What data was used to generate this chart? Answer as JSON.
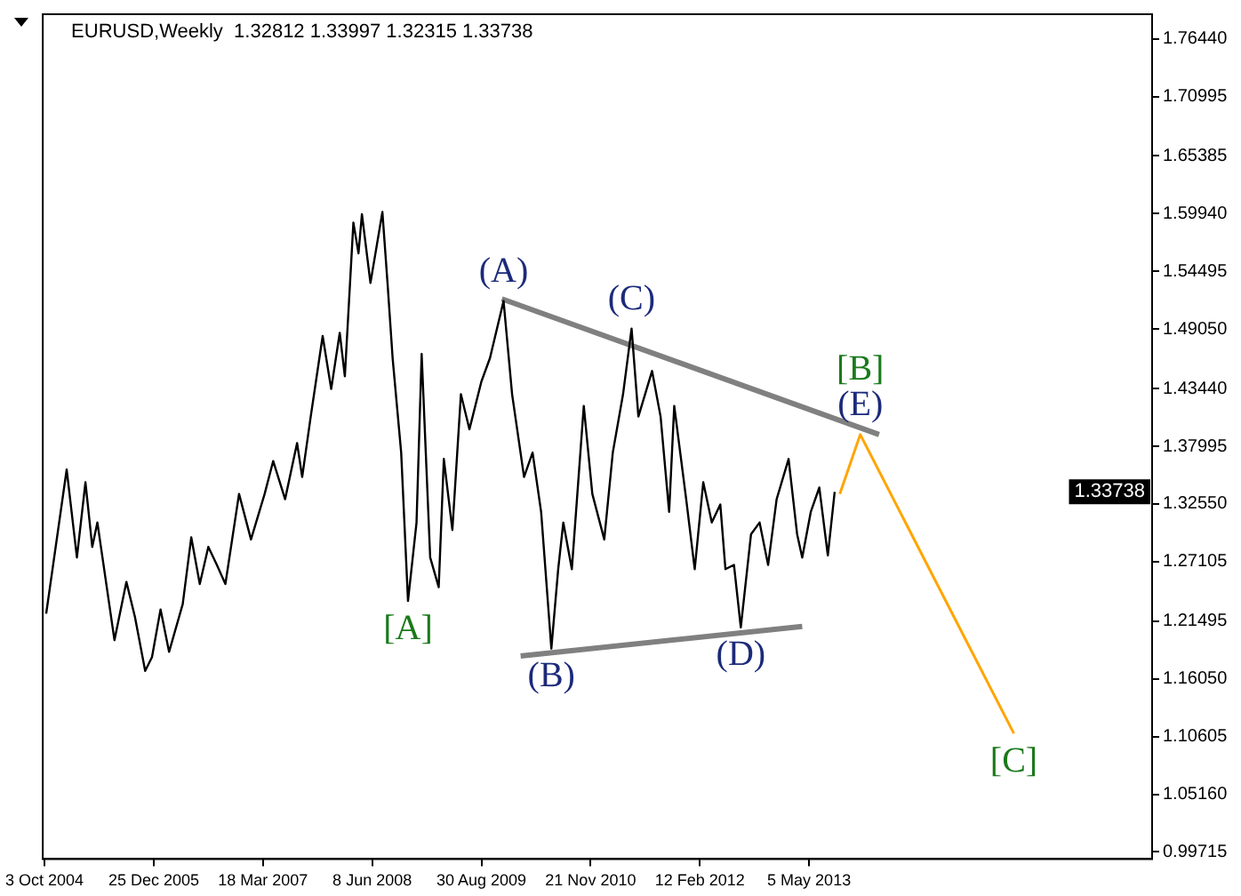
{
  "chart_data": {
    "type": "line",
    "title": "EURUSD,Weekly  1.32812 1.33997 1.32315 1.33738",
    "xlim": [
      "2004-09-26",
      "2017-03-12"
    ],
    "xticks": [
      {
        "value": "2004-10-03",
        "label": "3 Oct 2004"
      },
      {
        "value": "2005-12-25",
        "label": "25 Dec 2005"
      },
      {
        "value": "2007-03-18",
        "label": "18 Mar 2007"
      },
      {
        "value": "2008-06-08",
        "label": "8 Jun 2008"
      },
      {
        "value": "2009-08-30",
        "label": "30 Aug 2009"
      },
      {
        "value": "2010-11-21",
        "label": "21 Nov 2010"
      },
      {
        "value": "2012-02-12",
        "label": "12 Feb 2012"
      },
      {
        "value": "2013-05-05",
        "label": "5 May 2013"
      }
    ],
    "ylim": [
      0.9905,
      1.7876
    ],
    "yticks": [
      {
        "value": 0.99715,
        "label": "0.99715"
      },
      {
        "value": 1.0516,
        "label": "1.05160"
      },
      {
        "value": 1.10605,
        "label": "1.10605"
      },
      {
        "value": 1.1605,
        "label": "1.16050"
      },
      {
        "value": 1.21495,
        "label": "1.21495"
      },
      {
        "value": 1.27105,
        "label": "1.27105"
      },
      {
        "value": 1.3255,
        "label": "1.32550"
      },
      {
        "value": 1.37995,
        "label": "1.37995"
      },
      {
        "value": 1.4344,
        "label": "1.43440"
      },
      {
        "value": 1.4905,
        "label": "1.49050"
      },
      {
        "value": 1.54495,
        "label": "1.54495"
      },
      {
        "value": 1.5994,
        "label": "1.59940"
      },
      {
        "value": 1.65385,
        "label": "1.65385"
      },
      {
        "value": 1.70995,
        "label": "1.70995"
      },
      {
        "value": 1.7644,
        "label": "1.76440"
      }
    ],
    "grid": false,
    "legend": false,
    "marker": "none",
    "series": [
      {
        "color": "#000000",
        "x": [
          "2004-10-10",
          "2005-01-02",
          "2005-02-13",
          "2005-03-20",
          "2005-04-17",
          "2005-05-08",
          "2005-07-17",
          "2005-09-04",
          "2005-10-09",
          "2005-11-20",
          "2005-12-18",
          "2006-01-22",
          "2006-02-26",
          "2006-04-23",
          "2006-05-28",
          "2006-07-02",
          "2006-08-06",
          "2006-09-10",
          "2006-10-15",
          "2006-12-10",
          "2007-01-28",
          "2007-03-25",
          "2007-04-29",
          "2007-06-17",
          "2007-08-05",
          "2007-08-26",
          "2007-09-30",
          "2007-11-18",
          "2007-12-23",
          "2008-01-27",
          "2008-02-17",
          "2008-03-23",
          "2008-04-13",
          "2008-04-27",
          "2008-06-01",
          "2008-07-20",
          "2008-08-10",
          "2008-08-31",
          "2008-10-05",
          "2008-11-02",
          "2008-12-07",
          "2008-12-28",
          "2009-02-01",
          "2009-03-08",
          "2009-03-29",
          "2009-05-03",
          "2009-06-07",
          "2009-07-12",
          "2009-08-30",
          "2009-10-04",
          "2009-11-29",
          "2010-01-03",
          "2010-02-21",
          "2010-03-28",
          "2010-05-02",
          "2010-06-13",
          "2010-07-11",
          "2010-08-01",
          "2010-09-05",
          "2010-10-24",
          "2010-11-28",
          "2011-01-16",
          "2011-02-20",
          "2011-04-03",
          "2011-05-08",
          "2011-06-05",
          "2011-07-31",
          "2011-09-04",
          "2011-10-09",
          "2011-10-30",
          "2011-12-18",
          "2012-01-22",
          "2012-02-26",
          "2012-04-01",
          "2012-05-06",
          "2012-05-27",
          "2012-07-01",
          "2012-07-29",
          "2012-09-09",
          "2012-10-14",
          "2012-11-18",
          "2012-12-23",
          "2013-02-10",
          "2013-03-17",
          "2013-04-07",
          "2013-05-12",
          "2013-06-16",
          "2013-07-21",
          "2013-08-18"
        ],
        "values": [
          1.222,
          1.358,
          1.275,
          1.346,
          1.285,
          1.308,
          1.197,
          1.252,
          1.219,
          1.168,
          1.181,
          1.226,
          1.186,
          1.231,
          1.294,
          1.25,
          1.285,
          1.268,
          1.25,
          1.335,
          1.292,
          1.335,
          1.366,
          1.33,
          1.383,
          1.351,
          1.408,
          1.484,
          1.434,
          1.487,
          1.446,
          1.591,
          1.562,
          1.599,
          1.534,
          1.601,
          1.534,
          1.463,
          1.374,
          1.234,
          1.308,
          1.467,
          1.275,
          1.247,
          1.368,
          1.301,
          1.429,
          1.396,
          1.441,
          1.463,
          1.517,
          1.429,
          1.351,
          1.374,
          1.318,
          1.189,
          1.264,
          1.308,
          1.264,
          1.418,
          1.335,
          1.292,
          1.374,
          1.429,
          1.491,
          1.408,
          1.451,
          1.408,
          1.318,
          1.418,
          1.33,
          1.264,
          1.346,
          1.308,
          1.325,
          1.264,
          1.268,
          1.209,
          1.297,
          1.308,
          1.268,
          1.33,
          1.368,
          1.297,
          1.275,
          1.318,
          1.341,
          1.277,
          1.337
        ]
      },
      {
        "color": "#808080",
        "x": [
          "2009-11-22",
          "2014-02-16"
        ],
        "values": [
          1.519,
          1.391
        ]
      },
      {
        "color": "#808080",
        "x": [
          "2010-02-07",
          "2013-04-07"
        ],
        "values": [
          1.182,
          1.21
        ]
      },
      {
        "color": "#ffa500",
        "x": [
          "2013-09-08",
          "2013-12-01",
          "2015-08-23"
        ],
        "values": [
          1.335,
          1.391,
          1.109
        ]
      }
    ],
    "annotations": [
      {
        "text": "(A)",
        "x": "2009-11-29",
        "y": 1.517
      },
      {
        "text": "(B)",
        "x": "2010-06-13",
        "y": 1.189
      },
      {
        "text": "(C)",
        "x": "2011-05-08",
        "y": 1.491
      },
      {
        "text": "(D)",
        "x": "2012-07-29",
        "y": 1.209
      },
      {
        "text": "(E)",
        "x": "2013-12-01",
        "y": 1.391
      },
      {
        "text": "[A]",
        "x": "2008-11-02",
        "y": 1.234
      },
      {
        "text": "[B]",
        "x": "2013-12-01",
        "y": 1.391
      },
      {
        "text": "[C]",
        "x": "2015-08-23",
        "y": 1.109
      },
      "1.33738"
    ]
  }
}
